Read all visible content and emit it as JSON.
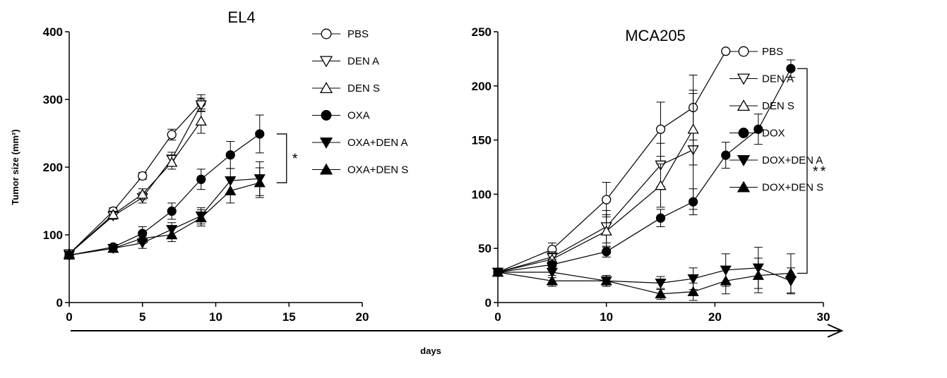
{
  "figure": {
    "ylabel": "Tumor size (mm²)",
    "xlabel": "days"
  },
  "chart_data": [
    {
      "type": "line",
      "title": "EL4",
      "xlim": [
        0,
        20
      ],
      "ylim": [
        0,
        400
      ],
      "xticks": [
        0,
        5,
        10,
        15,
        20
      ],
      "yticks": [
        0,
        100,
        200,
        300,
        400
      ],
      "significance": {
        "label": "*",
        "from_series": "OXA",
        "to_series": "OXA+DEN S"
      },
      "series": [
        {
          "name": "PBS",
          "marker": "circle-open",
          "x": [
            0,
            3,
            5,
            7,
            9
          ],
          "y": [
            72,
            135,
            187,
            248,
            295
          ],
          "err": [
            0,
            5,
            5,
            8,
            12
          ]
        },
        {
          "name": "DEN A",
          "marker": "triangle-down-open",
          "x": [
            0,
            3,
            5,
            7,
            9
          ],
          "y": [
            72,
            128,
            155,
            212,
            292
          ],
          "err": [
            0,
            5,
            8,
            10,
            10
          ]
        },
        {
          "name": "DEN S",
          "marker": "triangle-up-open",
          "x": [
            0,
            3,
            5,
            7,
            9
          ],
          "y": [
            72,
            130,
            160,
            207,
            268
          ],
          "err": [
            0,
            5,
            8,
            10,
            18
          ]
        },
        {
          "name": "OXA",
          "marker": "circle-filled",
          "x": [
            0,
            3,
            5,
            7,
            9,
            11,
            13
          ],
          "y": [
            70,
            82,
            102,
            135,
            182,
            218,
            249
          ],
          "err": [
            0,
            4,
            10,
            12,
            15,
            20,
            28
          ]
        },
        {
          "name": "OXA+DEN A",
          "marker": "triangle-down-filled",
          "x": [
            0,
            3,
            5,
            7,
            9,
            11,
            13
          ],
          "y": [
            70,
            80,
            88,
            108,
            128,
            180,
            183
          ],
          "err": [
            0,
            4,
            8,
            10,
            12,
            18,
            25
          ]
        },
        {
          "name": "OXA+DEN S",
          "marker": "triangle-up-filled",
          "x": [
            0,
            3,
            5,
            7,
            9,
            11,
            13
          ],
          "y": [
            70,
            80,
            95,
            100,
            125,
            165,
            177
          ],
          "err": [
            0,
            4,
            8,
            10,
            12,
            18,
            22
          ]
        }
      ]
    },
    {
      "type": "line",
      "title": "MCA205",
      "xlim": [
        0,
        30
      ],
      "ylim": [
        0,
        250
      ],
      "xticks": [
        0,
        10,
        20,
        30
      ],
      "yticks": [
        0,
        50,
        100,
        150,
        200,
        250
      ],
      "significance": {
        "label": "**",
        "from_series": "DOX",
        "to_series": "DOX+DEN S"
      },
      "series": [
        {
          "name": "PBS",
          "marker": "circle-open",
          "x": [
            0,
            5,
            10,
            15,
            18,
            21
          ],
          "y": [
            28,
            49,
            95,
            160,
            180,
            232
          ],
          "err": [
            0,
            6,
            16,
            25,
            30,
            0
          ]
        },
        {
          "name": "DEN A",
          "marker": "triangle-down-open",
          "x": [
            0,
            5,
            10,
            15,
            18
          ],
          "y": [
            28,
            42,
            70,
            127,
            141
          ],
          "err": [
            0,
            5,
            15,
            20,
            55
          ]
        },
        {
          "name": "DEN S",
          "marker": "triangle-up-open",
          "x": [
            0,
            5,
            10,
            15,
            18
          ],
          "y": [
            28,
            40,
            66,
            108,
            160
          ],
          "err": [
            0,
            5,
            15,
            20,
            33
          ]
        },
        {
          "name": "DOX",
          "marker": "circle-filled",
          "x": [
            0,
            5,
            10,
            15,
            18,
            21,
            24,
            27
          ],
          "y": [
            28,
            35,
            47,
            78,
            93,
            136,
            160,
            216
          ],
          "err": [
            0,
            5,
            5,
            8,
            12,
            12,
            14,
            8
          ]
        },
        {
          "name": "DOX+DEN A",
          "marker": "triangle-down-filled",
          "x": [
            0,
            5,
            10,
            15,
            18,
            21,
            24,
            27
          ],
          "y": [
            28,
            28,
            20,
            18,
            22,
            30,
            32,
            20
          ],
          "err": [
            0,
            5,
            5,
            6,
            10,
            15,
            19,
            12
          ]
        },
        {
          "name": "DOX+DEN S",
          "marker": "triangle-up-filled",
          "x": [
            0,
            5,
            10,
            15,
            18,
            21,
            24,
            27
          ],
          "y": [
            28,
            20,
            20,
            8,
            10,
            20,
            25,
            27
          ],
          "err": [
            0,
            5,
            5,
            5,
            8,
            12,
            16,
            18
          ]
        }
      ]
    }
  ]
}
